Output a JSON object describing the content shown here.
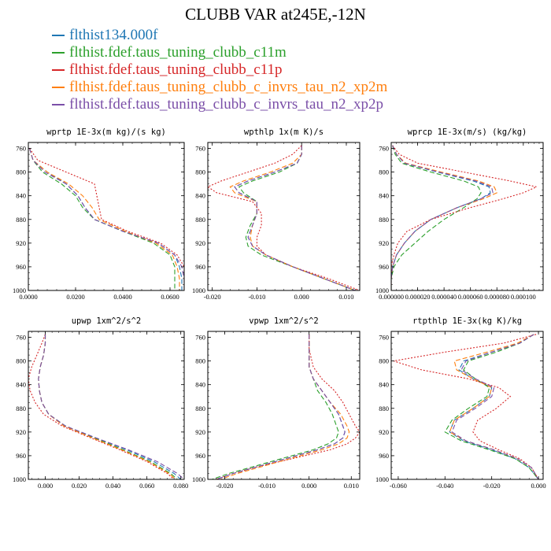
{
  "title": "CLUBB VAR at245E,-12N",
  "legend": [
    {
      "label": "flthist134.000f",
      "color": "#1f77b4"
    },
    {
      "label": "flthist.fdef.taus_tuning_clubb_c11m",
      "color": "#2ca02c"
    },
    {
      "label": "flthist.fdef.taus_tuning_clubb_c11p",
      "color": "#d62728"
    },
    {
      "label": "flthist.fdef.taus_tuning_clubb_c_invrs_tau_n2_xp2m",
      "color": "#ff7f0e"
    },
    {
      "label": "flthist.fdef.taus_tuning_clubb_c_invrs_tau_n2_xp2p",
      "color": "#7b4fa8"
    }
  ],
  "chart_data": [
    {
      "type": "line",
      "title": "wprtp  1E-3x(m kg)/(s kg)",
      "xlim": [
        0,
        0.066
      ],
      "ylim": [
        1000,
        750
      ],
      "y_reversed": true,
      "xticks": [
        "0.0000",
        "0.0200",
        "0.0400",
        "0.0600"
      ],
      "xtick_values": [
        0,
        0.02,
        0.04,
        0.06
      ],
      "yticks": [
        760,
        800,
        840,
        880,
        920,
        960,
        1000
      ],
      "y": [
        760,
        780,
        800,
        820,
        840,
        860,
        880,
        900,
        920,
        940,
        960,
        980,
        1000
      ],
      "series": [
        {
          "color": "#1f77b4",
          "dash": "6,3",
          "values": [
            0.0005,
            0.002,
            0.008,
            0.016,
            0.021,
            0.024,
            0.028,
            0.04,
            0.055,
            0.062,
            0.064,
            0.065,
            0.065
          ]
        },
        {
          "color": "#2ca02c",
          "dash": "6,3",
          "values": [
            0.0005,
            0.002,
            0.006,
            0.014,
            0.02,
            0.023,
            0.028,
            0.04,
            0.053,
            0.06,
            0.062,
            0.062,
            0.062
          ]
        },
        {
          "color": "#d62728",
          "dash": "2,2",
          "values": [
            0.0005,
            0.004,
            0.016,
            0.028,
            0.029,
            0.03,
            0.031,
            0.042,
            0.056,
            0.063,
            0.066,
            0.066,
            0.066
          ]
        },
        {
          "color": "#ff7f0e",
          "dash": "6,3",
          "values": [
            0.0005,
            0.002,
            0.008,
            0.017,
            0.023,
            0.027,
            0.03,
            0.041,
            0.054,
            0.061,
            0.063,
            0.064,
            0.064
          ]
        },
        {
          "color": "#7b4fa8",
          "dash": "6,3",
          "values": [
            0.0005,
            0.002,
            0.007,
            0.016,
            0.021,
            0.024,
            0.028,
            0.04,
            0.055,
            0.062,
            0.065,
            0.066,
            0.066
          ]
        }
      ]
    },
    {
      "type": "line",
      "title": "wpthlp  1x(m K)/s",
      "xlim": [
        -0.021,
        0.013
      ],
      "ylim": [
        1000,
        750
      ],
      "y_reversed": true,
      "xticks": [
        "-0.020",
        "-0.010",
        "0.000",
        "0.010"
      ],
      "xtick_values": [
        -0.02,
        -0.01,
        0,
        0.01
      ],
      "yticks": [
        760,
        800,
        840,
        880,
        920,
        960,
        1000
      ],
      "y": [
        755,
        770,
        785,
        800,
        815,
        825,
        835,
        850,
        870,
        890,
        910,
        925,
        940,
        960,
        980,
        1000
      ],
      "series": [
        {
          "color": "#1f77b4",
          "dash": "6,3",
          "values": [
            0.0,
            0.0,
            -0.001,
            -0.006,
            -0.012,
            -0.015,
            -0.014,
            -0.01,
            -0.01,
            -0.011,
            -0.012,
            -0.011,
            -0.008,
            -0.002,
            0.005,
            0.012
          ]
        },
        {
          "color": "#2ca02c",
          "dash": "6,3",
          "values": [
            0.0,
            0.0,
            -0.001,
            -0.005,
            -0.011,
            -0.014,
            -0.013,
            -0.01,
            -0.01,
            -0.0115,
            -0.0125,
            -0.012,
            -0.009,
            -0.002,
            0.005,
            0.012
          ]
        },
        {
          "color": "#d62728",
          "dash": "2,2",
          "values": [
            0.0,
            -0.002,
            -0.006,
            -0.012,
            -0.018,
            -0.021,
            -0.019,
            -0.011,
            -0.009,
            -0.009,
            -0.01,
            -0.01,
            -0.008,
            -0.002,
            0.006,
            0.013
          ]
        },
        {
          "color": "#ff7f0e",
          "dash": "6,3",
          "values": [
            0.0,
            0.0,
            -0.002,
            -0.007,
            -0.013,
            -0.016,
            -0.015,
            -0.01,
            -0.01,
            -0.011,
            -0.0115,
            -0.011,
            -0.008,
            -0.002,
            0.005,
            0.012
          ]
        },
        {
          "color": "#7b4fa8",
          "dash": "6,3",
          "values": [
            0.0,
            0.0,
            -0.001,
            -0.006,
            -0.012,
            -0.015,
            -0.014,
            -0.01,
            -0.01,
            -0.011,
            -0.012,
            -0.011,
            -0.008,
            -0.002,
            0.005,
            0.012
          ]
        }
      ]
    },
    {
      "type": "line",
      "title": "wprcp  1E-3x(m/s) (kg/kg)",
      "xlim": [
        0,
        0.000115
      ],
      "ylim": [
        1000,
        750
      ],
      "y_reversed": true,
      "xticks": [
        "0.000000",
        "0.000020",
        "0.000040",
        "0.000060",
        "0.000080",
        "0.000100"
      ],
      "xtick_values": [
        0,
        2e-05,
        4e-05,
        6e-05,
        8e-05,
        0.0001
      ],
      "yticks": [
        760,
        800,
        840,
        880,
        920,
        960,
        1000
      ],
      "y": [
        755,
        770,
        785,
        800,
        815,
        825,
        835,
        845,
        860,
        880,
        900,
        920,
        940,
        960,
        980,
        1000
      ],
      "series": [
        {
          "color": "#1f77b4",
          "dash": "6,3",
          "values": [
            1e-06,
            4e-06,
            1e-05,
            3.5e-05,
            6.2e-05,
            7.4e-05,
            7.5e-05,
            6.8e-05,
            5e-05,
            3e-05,
            1.8e-05,
            1e-05,
            4e-06,
            1e-06,
            0.0,
            0.0
          ]
        },
        {
          "color": "#2ca02c",
          "dash": "6,3",
          "values": [
            1e-06,
            3e-06,
            8e-06,
            3e-05,
            5.5e-05,
            6.6e-05,
            6.8e-05,
            6.5e-05,
            5.5e-05,
            4e-05,
            2.8e-05,
            1.8e-05,
            8e-06,
            2e-06,
            0.0,
            0.0
          ]
        },
        {
          "color": "#d62728",
          "dash": "2,2",
          "values": [
            1e-06,
            6e-06,
            2e-05,
            5.5e-05,
            9e-05,
            0.00011,
            0.0001,
            8.5e-05,
            6e-05,
            3e-05,
            1.2e-05,
            5e-06,
            2e-06,
            0.0,
            0.0,
            0.0
          ]
        },
        {
          "color": "#ff7f0e",
          "dash": "6,3",
          "values": [
            1e-06,
            4e-06,
            1.1e-05,
            3.8e-05,
            6.6e-05,
            7.8e-05,
            8e-05,
            7e-05,
            5e-05,
            3e-05,
            1.8e-05,
            1e-05,
            4e-06,
            1e-06,
            0.0,
            0.0
          ]
        },
        {
          "color": "#7b4fa8",
          "dash": "6,3",
          "values": [
            1e-06,
            4e-06,
            1e-05,
            3.6e-05,
            6.4e-05,
            7.6e-05,
            7.7e-05,
            6.8e-05,
            5e-05,
            3e-05,
            1.8e-05,
            1e-05,
            4e-06,
            1e-06,
            0.0,
            0.0
          ]
        }
      ]
    },
    {
      "type": "line",
      "title": "upwp  1xm^2/s^2",
      "xlim": [
        -0.01,
        0.082
      ],
      "ylim": [
        1000,
        750
      ],
      "y_reversed": true,
      "xticks": [
        "0.000",
        "0.020",
        "0.040",
        "0.060",
        "0.080"
      ],
      "xtick_values": [
        0,
        0.02,
        0.04,
        0.06,
        0.08
      ],
      "yticks": [
        760,
        800,
        840,
        880,
        920,
        960,
        1000
      ],
      "y": [
        755,
        770,
        790,
        810,
        830,
        850,
        870,
        890,
        910,
        930,
        950,
        970,
        990,
        1000
      ],
      "series": [
        {
          "color": "#1f77b4",
          "dash": "6,3",
          "values": [
            0.0,
            0.0,
            -0.001,
            -0.003,
            -0.004,
            -0.0035,
            -0.002,
            0.002,
            0.012,
            0.03,
            0.048,
            0.064,
            0.076,
            0.08
          ]
        },
        {
          "color": "#2ca02c",
          "dash": "6,3",
          "values": [
            0.0,
            0.0,
            -0.001,
            -0.003,
            -0.004,
            -0.0035,
            -0.002,
            0.002,
            0.012,
            0.029,
            0.046,
            0.062,
            0.074,
            0.078
          ]
        },
        {
          "color": "#d62728",
          "dash": "2,2",
          "values": [
            0.0,
            -0.002,
            -0.005,
            -0.008,
            -0.01,
            -0.009,
            -0.006,
            -0.001,
            0.01,
            0.027,
            0.044,
            0.06,
            0.072,
            0.076
          ]
        },
        {
          "color": "#ff7f0e",
          "dash": "6,3",
          "values": [
            0.0,
            0.0,
            -0.001,
            -0.003,
            -0.004,
            -0.0035,
            -0.002,
            0.002,
            0.011,
            0.028,
            0.045,
            0.061,
            0.073,
            0.077
          ]
        },
        {
          "color": "#7b4fa8",
          "dash": "6,3",
          "values": [
            0.0,
            0.0,
            -0.001,
            -0.003,
            -0.004,
            -0.0035,
            -0.002,
            0.002,
            0.012,
            0.03,
            0.049,
            0.066,
            0.078,
            0.082
          ]
        }
      ]
    },
    {
      "type": "line",
      "title": "vpwp  1xm^2/s^2",
      "xlim": [
        -0.024,
        0.012
      ],
      "ylim": [
        1000,
        750
      ],
      "y_reversed": true,
      "xticks": [
        "-0.020",
        "-0.010",
        "0.000",
        "0.010"
      ],
      "xtick_values": [
        -0.02,
        -0.01,
        0,
        0.01
      ],
      "yticks": [
        760,
        800,
        840,
        880,
        920,
        960,
        1000
      ],
      "y": [
        755,
        780,
        810,
        830,
        850,
        870,
        890,
        910,
        920,
        930,
        940,
        950,
        960,
        970,
        980,
        990,
        1000
      ],
      "series": [
        {
          "color": "#1f77b4",
          "dash": "6,3",
          "values": [
            0.0,
            0.0,
            0.0,
            0.001,
            0.003,
            0.005,
            0.007,
            0.008,
            0.0085,
            0.008,
            0.006,
            0.002,
            -0.003,
            -0.008,
            -0.013,
            -0.018,
            -0.022
          ]
        },
        {
          "color": "#2ca02c",
          "dash": "6,3",
          "values": [
            0.0,
            0.0,
            0.0,
            0.001,
            0.002,
            0.004,
            0.0055,
            0.0065,
            0.007,
            0.0065,
            0.0045,
            0.001,
            -0.004,
            -0.009,
            -0.014,
            -0.019,
            -0.023
          ]
        },
        {
          "color": "#d62728",
          "dash": "2,2",
          "values": [
            0.0,
            0.0,
            0.001,
            0.003,
            0.006,
            0.008,
            0.0095,
            0.011,
            0.012,
            0.011,
            0.009,
            0.005,
            -0.001,
            -0.007,
            -0.013,
            -0.018,
            -0.022
          ]
        },
        {
          "color": "#ff7f0e",
          "dash": "6,3",
          "values": [
            0.0,
            0.0,
            0.0,
            0.001,
            0.003,
            0.005,
            0.0075,
            0.009,
            0.0095,
            0.009,
            0.007,
            0.003,
            -0.002,
            -0.007,
            -0.012,
            -0.017,
            -0.021
          ]
        },
        {
          "color": "#7b4fa8",
          "dash": "6,3",
          "values": [
            0.0,
            0.0,
            0.0,
            0.001,
            0.003,
            0.005,
            0.007,
            0.008,
            0.0085,
            0.008,
            0.006,
            0.002,
            -0.003,
            -0.008,
            -0.013,
            -0.018,
            -0.022
          ]
        }
      ]
    },
    {
      "type": "line",
      "title": "rtpthlp  1E-3x(kg K)/kg",
      "xlim": [
        -0.063,
        0.002
      ],
      "ylim": [
        1000,
        750
      ],
      "y_reversed": true,
      "xticks": [
        "-0.060",
        "-0.040",
        "-0.020",
        "0.000"
      ],
      "xtick_values": [
        -0.06,
        -0.04,
        -0.02,
        0
      ],
      "yticks": [
        760,
        800,
        840,
        880,
        920,
        960,
        1000
      ],
      "y": [
        755,
        770,
        785,
        800,
        815,
        830,
        845,
        860,
        880,
        900,
        920,
        935,
        950,
        965,
        980,
        1000
      ],
      "series": [
        {
          "color": "#1f77b4",
          "dash": "6,3",
          "values": [
            -0.002,
            -0.008,
            -0.02,
            -0.032,
            -0.034,
            -0.028,
            -0.02,
            -0.021,
            -0.028,
            -0.036,
            -0.038,
            -0.032,
            -0.02,
            -0.01,
            -0.004,
            0.0
          ]
        },
        {
          "color": "#2ca02c",
          "dash": "6,3",
          "values": [
            -0.002,
            -0.008,
            -0.018,
            -0.03,
            -0.032,
            -0.027,
            -0.021,
            -0.022,
            -0.03,
            -0.037,
            -0.04,
            -0.033,
            -0.021,
            -0.01,
            -0.004,
            0.0
          ]
        },
        {
          "color": "#d62728",
          "dash": "2,2",
          "values": [
            -0.001,
            -0.015,
            -0.04,
            -0.062,
            -0.05,
            -0.03,
            -0.017,
            -0.012,
            -0.018,
            -0.026,
            -0.028,
            -0.025,
            -0.017,
            -0.008,
            -0.003,
            0.0
          ]
        },
        {
          "color": "#ff7f0e",
          "dash": "6,3",
          "values": [
            -0.002,
            -0.009,
            -0.022,
            -0.036,
            -0.035,
            -0.028,
            -0.02,
            -0.021,
            -0.028,
            -0.036,
            -0.038,
            -0.031,
            -0.019,
            -0.009,
            -0.003,
            0.0
          ]
        },
        {
          "color": "#7b4fa8",
          "dash": "6,3",
          "values": [
            -0.002,
            -0.008,
            -0.02,
            -0.031,
            -0.033,
            -0.027,
            -0.019,
            -0.02,
            -0.027,
            -0.035,
            -0.037,
            -0.031,
            -0.019,
            -0.009,
            -0.003,
            0.0
          ]
        }
      ]
    }
  ]
}
